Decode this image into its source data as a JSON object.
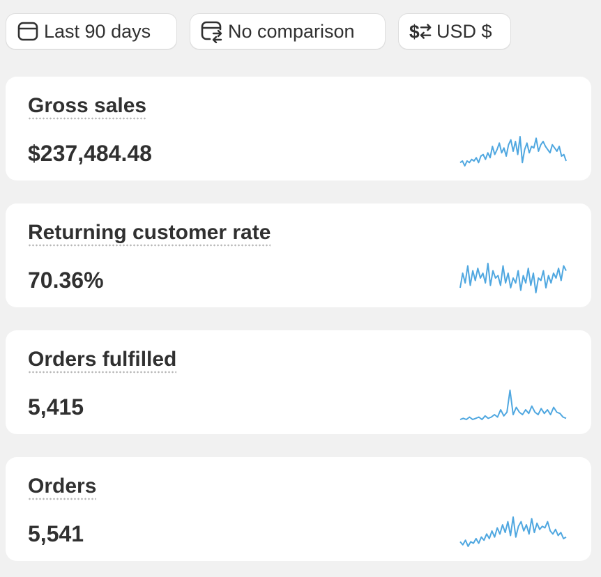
{
  "filters": {
    "date_range": {
      "label": "Last 90 days",
      "icon": "calendar-icon"
    },
    "comparison": {
      "label": "No comparison",
      "icon": "calendar-compare-icon"
    },
    "currency": {
      "label": "USD $",
      "icon": "currency-swap-icon"
    }
  },
  "colors": {
    "sparkline": "#4fa7e0",
    "card_background": "#ffffff",
    "page_background": "#f1f1f1",
    "text": "#303030"
  },
  "metrics": [
    {
      "title": "Gross sales",
      "value": "$237,484.48",
      "trend": [
        8,
        9,
        6,
        9,
        8,
        10,
        9,
        11,
        8,
        12,
        13,
        10,
        14,
        11,
        18,
        13,
        16,
        20,
        14,
        17,
        12,
        19,
        22,
        15,
        21,
        13,
        24,
        8,
        16,
        20,
        14,
        18,
        17,
        23,
        15,
        19,
        21,
        18,
        16,
        14,
        19,
        17,
        15,
        18,
        12,
        13,
        9
      ]
    },
    {
      "title": "Returning customer rate",
      "value": "70.36%",
      "trend": [
        10,
        22,
        14,
        28,
        12,
        24,
        16,
        26,
        18,
        22,
        14,
        30,
        12,
        24,
        18,
        20,
        12,
        28,
        14,
        22,
        10,
        18,
        14,
        24,
        8,
        20,
        14,
        26,
        12,
        22,
        6,
        18,
        16,
        24,
        10,
        20,
        14,
        22,
        18,
        26,
        16,
        28,
        24
      ]
    },
    {
      "title": "Orders fulfilled",
      "value": "5,415",
      "trend": [
        4,
        5,
        4,
        6,
        4,
        5,
        6,
        4,
        7,
        5,
        6,
        8,
        6,
        12,
        7,
        10,
        28,
        8,
        14,
        10,
        8,
        12,
        9,
        15,
        10,
        8,
        13,
        9,
        12,
        8,
        14,
        10,
        9,
        6,
        5
      ]
    },
    {
      "title": "Orders",
      "value": "5,541",
      "trend": [
        9,
        7,
        10,
        6,
        9,
        8,
        11,
        8,
        12,
        10,
        14,
        11,
        16,
        12,
        18,
        14,
        20,
        15,
        22,
        13,
        25,
        12,
        19,
        22,
        16,
        20,
        14,
        24,
        15,
        21,
        17,
        19,
        18,
        22,
        16,
        14,
        17,
        13,
        15,
        11,
        12
      ]
    }
  ]
}
